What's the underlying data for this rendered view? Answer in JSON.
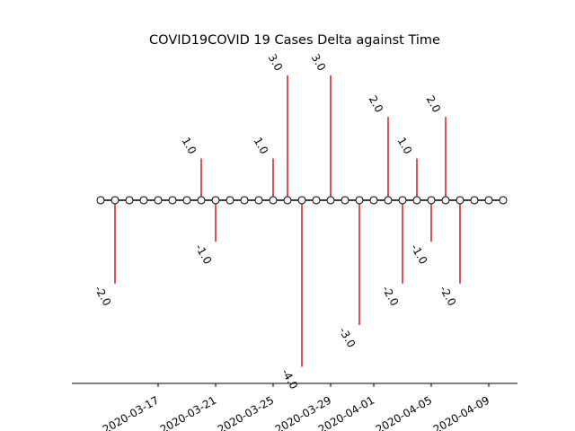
{
  "chart_data": {
    "type": "stem",
    "title": "COVID19COVID 19 Cases Delta against Time",
    "xlabel": "",
    "ylabel": "",
    "x": [
      "2020-03-13",
      "2020-03-14",
      "2020-03-15",
      "2020-03-16",
      "2020-03-17",
      "2020-03-18",
      "2020-03-19",
      "2020-03-20",
      "2020-03-21",
      "2020-03-22",
      "2020-03-23",
      "2020-03-24",
      "2020-03-25",
      "2020-03-26",
      "2020-03-27",
      "2020-03-28",
      "2020-03-29",
      "2020-03-30",
      "2020-03-31",
      "2020-04-01",
      "2020-04-02",
      "2020-04-03",
      "2020-04-04",
      "2020-04-05",
      "2020-04-06",
      "2020-04-07",
      "2020-04-08",
      "2020-04-09",
      "2020-04-10"
    ],
    "values": [
      0,
      -2,
      0,
      0,
      0,
      0,
      0,
      1,
      -1,
      0,
      0,
      0,
      1,
      3,
      -4,
      0,
      3,
      0,
      -3,
      0,
      2,
      -2,
      1,
      -1,
      2,
      -2,
      0,
      0,
      0
    ],
    "data_labels": [
      "",
      "-2.0",
      "",
      "",
      "",
      "",
      "",
      "1.0",
      "-1.0",
      "",
      "",
      "",
      "1.0",
      "3.0",
      "-4.0",
      "",
      "3.0",
      "",
      "-3.0",
      "",
      "2.0",
      "-2.0",
      "1.0",
      "-1.0",
      "2.0",
      "-2.0",
      "",
      "",
      ""
    ],
    "xticks": [
      "2020-03-17",
      "2020-03-21",
      "2020-03-25",
      "2020-03-29",
      "2020-04-01",
      "2020-04-05",
      "2020-04-09"
    ],
    "xlim": [
      "2020-03-11",
      "2020-04-11"
    ],
    "ylim": [
      -4.4,
      3.6
    ],
    "grid": false,
    "stem_color": "#cc1f1f",
    "baseline_color": "#000000",
    "marker_face": "#ffffff",
    "marker_edge": "#000000"
  }
}
